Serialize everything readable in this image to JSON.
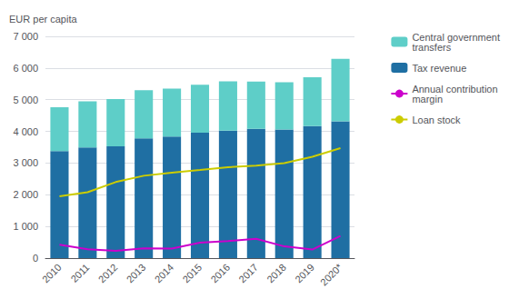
{
  "chart_data": {
    "type": "bar",
    "y_label": "EUR per capita",
    "categories": [
      "2010",
      "2011",
      "2012",
      "2013",
      "2014",
      "2015",
      "2016",
      "2017",
      "2018",
      "2019",
      "2020*"
    ],
    "stacked": true,
    "series": [
      {
        "name": "Tax revenue",
        "type": "bar",
        "color": "#1f6fa3",
        "values": [
          3380,
          3490,
          3530,
          3780,
          3840,
          3960,
          4020,
          4080,
          4060,
          4170,
          4320
        ]
      },
      {
        "name": "Central government\ntransfers",
        "type": "bar",
        "color": "#5ecec8",
        "values": [
          1380,
          1460,
          1490,
          1520,
          1510,
          1510,
          1560,
          1490,
          1490,
          1540,
          1970
        ]
      },
      {
        "name": "Loan stock",
        "type": "line",
        "color": "#cccc00",
        "values": [
          1950,
          2080,
          2400,
          2600,
          2700,
          2780,
          2870,
          2920,
          3000,
          3200,
          3470
        ]
      },
      {
        "name": "Annual contribution\nmargin",
        "type": "line",
        "color": "#cc00cc",
        "values": [
          420,
          280,
          230,
          310,
          300,
          490,
          540,
          610,
          370,
          270,
          700
        ]
      }
    ],
    "ylim": [
      0,
      7000
    ],
    "yticks": [
      0,
      {
        "value": 1000,
        "label": "1 000"
      },
      {
        "value": 2000,
        "label": "2 000"
      },
      {
        "value": 3000,
        "label": "3 000"
      },
      {
        "value": 4000,
        "label": "4 000"
      },
      {
        "value": 5000,
        "label": "5 000"
      },
      {
        "value": 6000,
        "label": "6 000"
      },
      {
        "value": 7000,
        "label": "7 000"
      }
    ],
    "grid": true,
    "legend": "right"
  }
}
